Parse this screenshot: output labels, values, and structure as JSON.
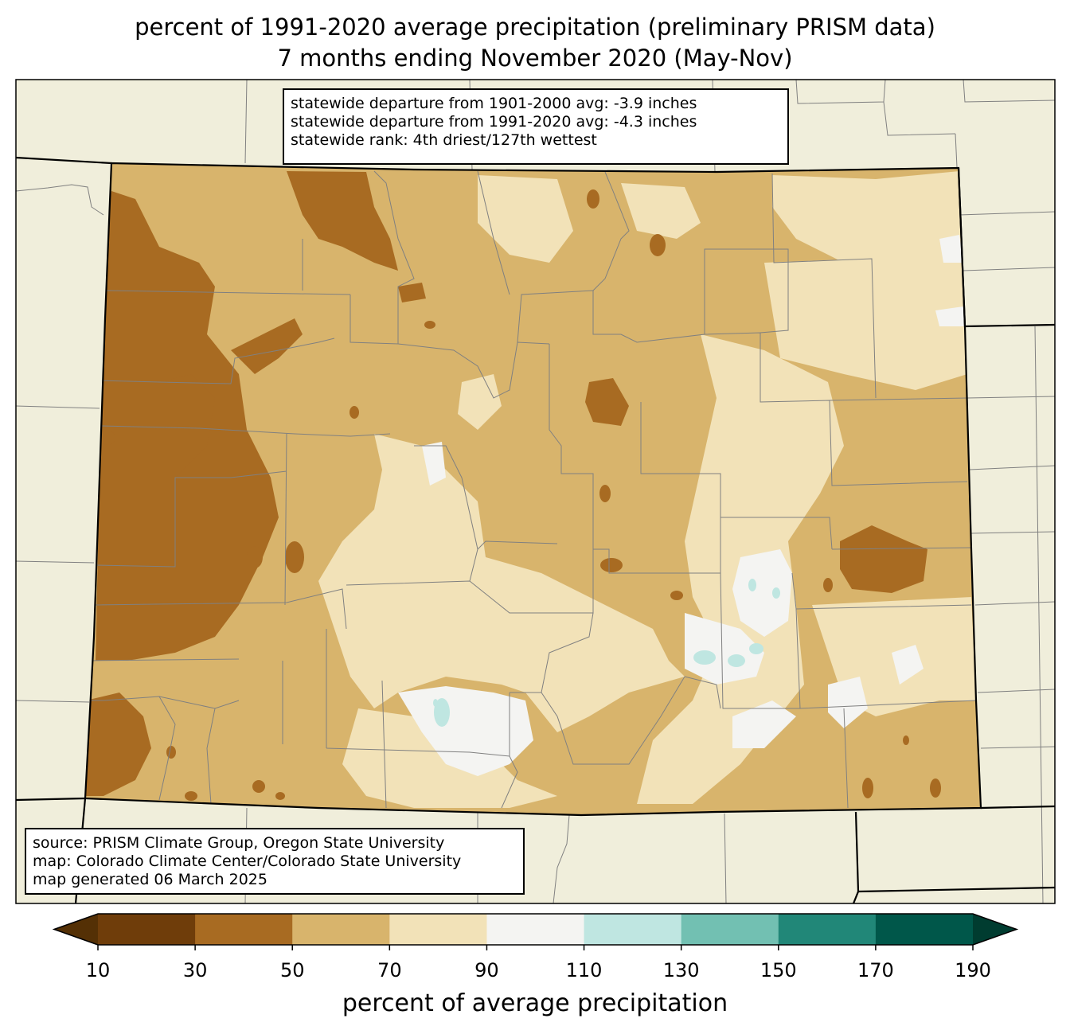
{
  "title": {
    "line1": "percent of 1991-2020 average precipitation (preliminary PRISM data)",
    "line2": "7 months ending November 2020 (May-Nov)"
  },
  "stats": [
    "statewide departure from 1901-2000 avg: -3.9 inches",
    "statewide departure from 1991-2020 avg: -4.3 inches",
    "statewide rank: 4th driest/127th wettest"
  ],
  "source": [
    "source: PRISM Climate Group, Oregon State University",
    "map: Colorado Climate Center/Colorado State University",
    "map generated 06 March 2025"
  ],
  "colorbar": {
    "label": "percent of average precipitation",
    "ticks": [
      "10",
      "30",
      "50",
      "70",
      "90",
      "110",
      "130",
      "150",
      "170",
      "190"
    ],
    "bins": [
      {
        "range": "<10",
        "color": "#543005"
      },
      {
        "range": "10-30",
        "color": "#6f3d0a"
      },
      {
        "range": "30-50",
        "color": "#a86b22"
      },
      {
        "range": "50-70",
        "color": "#d8b46c"
      },
      {
        "range": "70-90",
        "color": "#f2e2b8"
      },
      {
        "range": "90-110",
        "color": "#f4f4f2"
      },
      {
        "range": "110-130",
        "color": "#bfe6e1"
      },
      {
        "range": "130-150",
        "color": "#72c0b2"
      },
      {
        "range": "150-170",
        "color": "#218778"
      },
      {
        "range": "170-190",
        "color": "#00574a"
      },
      {
        "range": ">190",
        "color": "#003c30"
      }
    ]
  },
  "colors": {
    "background_land": "#f0eedb",
    "state_border": "#000000",
    "county_border": "#808080"
  }
}
